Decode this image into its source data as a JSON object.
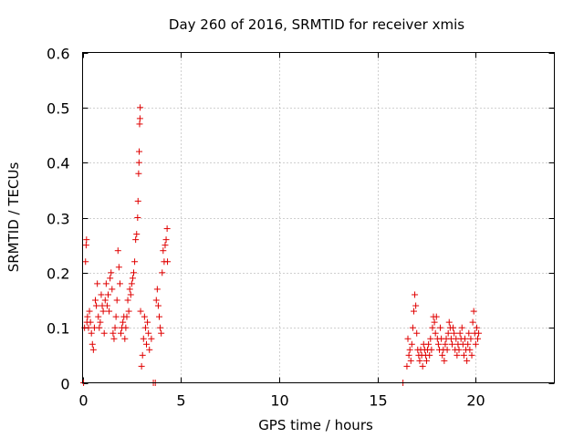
{
  "chart_data": {
    "type": "scatter",
    "title": "Day 260 of 2016, SRMTID for receiver xmis",
    "xlabel": "GPS time / hours",
    "ylabel": "SRMTID / TECUs",
    "xlim": [
      0,
      24
    ],
    "ylim": [
      0,
      0.6
    ],
    "xticks": [
      0,
      5,
      10,
      15,
      20
    ],
    "yticks": [
      0,
      0.1,
      0.2,
      0.3,
      0.4,
      0.5,
      0.6
    ],
    "xtick_labels": [
      "0",
      "5",
      "10",
      "15",
      "20"
    ],
    "ytick_labels": [
      "0",
      "0.1",
      "0.2",
      "0.3",
      "0.4",
      "0.5",
      "0.6"
    ],
    "grid": true,
    "marker": "+",
    "color": "#e00000",
    "series": [
      {
        "name": "SRMTID",
        "points": [
          [
            0.05,
            0.0
          ],
          [
            0.1,
            0.1
          ],
          [
            0.15,
            0.22
          ],
          [
            0.18,
            0.25
          ],
          [
            0.2,
            0.26
          ],
          [
            0.22,
            0.11
          ],
          [
            0.25,
            0.12
          ],
          [
            0.3,
            0.1
          ],
          [
            0.35,
            0.13
          ],
          [
            0.4,
            0.11
          ],
          [
            0.45,
            0.09
          ],
          [
            0.5,
            0.07
          ],
          [
            0.55,
            0.06
          ],
          [
            0.6,
            0.1
          ],
          [
            0.65,
            0.15
          ],
          [
            0.7,
            0.14
          ],
          [
            0.75,
            0.18
          ],
          [
            0.8,
            0.12
          ],
          [
            0.85,
            0.1
          ],
          [
            0.9,
            0.11
          ],
          [
            0.95,
            0.16
          ],
          [
            1.0,
            0.14
          ],
          [
            1.05,
            0.13
          ],
          [
            1.1,
            0.09
          ],
          [
            1.15,
            0.15
          ],
          [
            1.2,
            0.18
          ],
          [
            1.25,
            0.14
          ],
          [
            1.3,
            0.16
          ],
          [
            1.35,
            0.13
          ],
          [
            1.4,
            0.19
          ],
          [
            1.45,
            0.2
          ],
          [
            1.5,
            0.17
          ],
          [
            1.55,
            0.09
          ],
          [
            1.6,
            0.08
          ],
          [
            1.65,
            0.1
          ],
          [
            1.7,
            0.12
          ],
          [
            1.75,
            0.15
          ],
          [
            1.8,
            0.24
          ],
          [
            1.85,
            0.21
          ],
          [
            1.9,
            0.18
          ],
          [
            1.95,
            0.09
          ],
          [
            2.0,
            0.1
          ],
          [
            2.05,
            0.11
          ],
          [
            2.1,
            0.12
          ],
          [
            2.15,
            0.08
          ],
          [
            2.2,
            0.1
          ],
          [
            2.25,
            0.12
          ],
          [
            2.3,
            0.15
          ],
          [
            2.35,
            0.13
          ],
          [
            2.4,
            0.17
          ],
          [
            2.45,
            0.16
          ],
          [
            2.5,
            0.18
          ],
          [
            2.55,
            0.19
          ],
          [
            2.6,
            0.2
          ],
          [
            2.65,
            0.22
          ],
          [
            2.7,
            0.26
          ],
          [
            2.75,
            0.27
          ],
          [
            2.8,
            0.3
          ],
          [
            2.82,
            0.33
          ],
          [
            2.85,
            0.38
          ],
          [
            2.87,
            0.4
          ],
          [
            2.88,
            0.42
          ],
          [
            2.9,
            0.47
          ],
          [
            2.92,
            0.48
          ],
          [
            2.93,
            0.5
          ],
          [
            2.95,
            0.13
          ],
          [
            3.0,
            0.03
          ],
          [
            3.05,
            0.05
          ],
          [
            3.1,
            0.08
          ],
          [
            3.15,
            0.12
          ],
          [
            3.2,
            0.1
          ],
          [
            3.25,
            0.07
          ],
          [
            3.3,
            0.11
          ],
          [
            3.35,
            0.09
          ],
          [
            3.4,
            0.06
          ],
          [
            3.5,
            0.08
          ],
          [
            3.6,
            0.0
          ],
          [
            3.7,
            0.0
          ],
          [
            3.75,
            0.15
          ],
          [
            3.8,
            0.17
          ],
          [
            3.85,
            0.14
          ],
          [
            3.9,
            0.12
          ],
          [
            3.95,
            0.1
          ],
          [
            4.0,
            0.09
          ],
          [
            4.05,
            0.2
          ],
          [
            4.1,
            0.24
          ],
          [
            4.15,
            0.22
          ],
          [
            4.2,
            0.25
          ],
          [
            4.25,
            0.26
          ],
          [
            4.3,
            0.28
          ],
          [
            4.32,
            0.22
          ],
          [
            16.3,
            0.0
          ],
          [
            16.5,
            0.03
          ],
          [
            16.55,
            0.08
          ],
          [
            16.6,
            0.05
          ],
          [
            16.65,
            0.06
          ],
          [
            16.7,
            0.04
          ],
          [
            16.75,
            0.07
          ],
          [
            16.8,
            0.1
          ],
          [
            16.85,
            0.13
          ],
          [
            16.9,
            0.16
          ],
          [
            16.95,
            0.14
          ],
          [
            17.0,
            0.09
          ],
          [
            17.05,
            0.06
          ],
          [
            17.1,
            0.05
          ],
          [
            17.15,
            0.04
          ],
          [
            17.2,
            0.06
          ],
          [
            17.25,
            0.05
          ],
          [
            17.3,
            0.03
          ],
          [
            17.35,
            0.07
          ],
          [
            17.4,
            0.06
          ],
          [
            17.45,
            0.05
          ],
          [
            17.5,
            0.04
          ],
          [
            17.55,
            0.06
          ],
          [
            17.6,
            0.07
          ],
          [
            17.65,
            0.05
          ],
          [
            17.7,
            0.08
          ],
          [
            17.75,
            0.06
          ],
          [
            17.8,
            0.1
          ],
          [
            17.85,
            0.12
          ],
          [
            17.9,
            0.11
          ],
          [
            17.95,
            0.09
          ],
          [
            18.0,
            0.12
          ],
          [
            18.05,
            0.08
          ],
          [
            18.1,
            0.07
          ],
          [
            18.15,
            0.06
          ],
          [
            18.2,
            0.1
          ],
          [
            18.25,
            0.08
          ],
          [
            18.3,
            0.05
          ],
          [
            18.35,
            0.06
          ],
          [
            18.4,
            0.04
          ],
          [
            18.45,
            0.07
          ],
          [
            18.5,
            0.08
          ],
          [
            18.55,
            0.06
          ],
          [
            18.6,
            0.09
          ],
          [
            18.65,
            0.11
          ],
          [
            18.7,
            0.1
          ],
          [
            18.75,
            0.08
          ],
          [
            18.8,
            0.07
          ],
          [
            18.85,
            0.1
          ],
          [
            18.9,
            0.09
          ],
          [
            18.95,
            0.06
          ],
          [
            19.0,
            0.08
          ],
          [
            19.05,
            0.05
          ],
          [
            19.1,
            0.07
          ],
          [
            19.15,
            0.06
          ],
          [
            19.2,
            0.09
          ],
          [
            19.25,
            0.08
          ],
          [
            19.3,
            0.1
          ],
          [
            19.35,
            0.07
          ],
          [
            19.4,
            0.05
          ],
          [
            19.45,
            0.08
          ],
          [
            19.5,
            0.06
          ],
          [
            19.55,
            0.04
          ],
          [
            19.6,
            0.07
          ],
          [
            19.65,
            0.09
          ],
          [
            19.7,
            0.06
          ],
          [
            19.75,
            0.08
          ],
          [
            19.8,
            0.05
          ],
          [
            19.85,
            0.11
          ],
          [
            19.9,
            0.13
          ],
          [
            19.95,
            0.09
          ],
          [
            20.0,
            0.07
          ],
          [
            20.05,
            0.1
          ],
          [
            20.1,
            0.08
          ],
          [
            20.15,
            0.09
          ]
        ]
      }
    ]
  }
}
